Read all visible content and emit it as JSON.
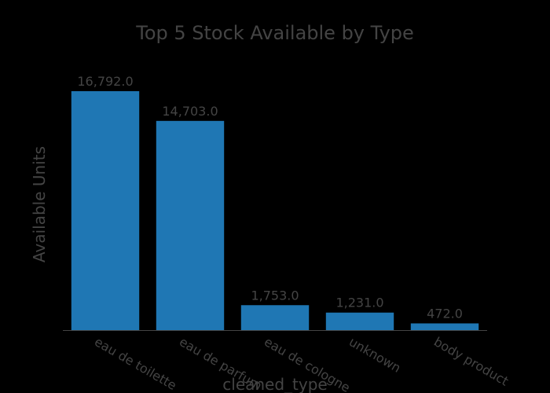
{
  "chart_data": {
    "type": "bar",
    "title": "Top 5 Stock Available by Type",
    "xlabel": "cleaned_type",
    "ylabel": "Available Units",
    "categories": [
      "eau de toilette",
      "eau de parfum",
      "eau de cologne",
      "unknown",
      "body product"
    ],
    "values": [
      16792.0,
      14703.0,
      1753.0,
      1231.0,
      472.0
    ],
    "data_labels": [
      "16,792.0",
      "14,703.0",
      "1,753.0",
      "1,231.0",
      "472.0"
    ],
    "ylim": [
      0,
      17676
    ],
    "grid": false,
    "legend": "none",
    "bar_color": "#1f77b4",
    "background": "#000000",
    "text_color": "#444444"
  }
}
